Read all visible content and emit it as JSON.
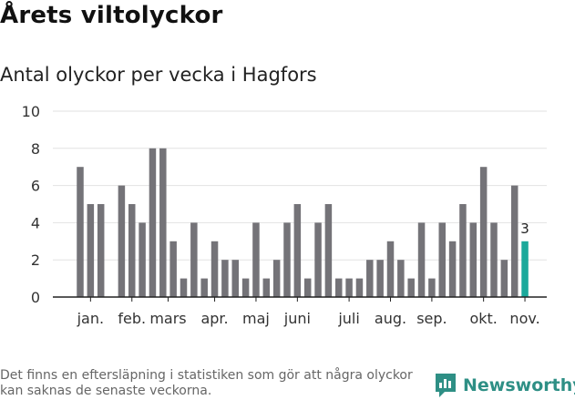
{
  "title": "Årets viltolyckor",
  "subtitle": "Antal olyckor per vecka i Hagfors",
  "footnote": "Det finns en eftersläpning i statistiken som gör att några olyckor kan saknas de senaste veckorna.",
  "brand": "Newsworthy",
  "colors": {
    "bar": "#747378",
    "highlight": "#1ba99b",
    "grid": "#e2e2e2",
    "axis": "#222222",
    "brand": "#2e8f85"
  },
  "chart_data": {
    "type": "bar",
    "ylim": [
      0,
      10
    ],
    "yticks": [
      0,
      2,
      4,
      6,
      8,
      10
    ],
    "values": [
      7,
      5,
      5,
      0,
      6,
      5,
      4,
      8,
      8,
      3,
      1,
      4,
      1,
      3,
      2,
      2,
      1,
      4,
      1,
      2,
      4,
      5,
      1,
      4,
      5,
      1,
      1,
      1,
      2,
      2,
      3,
      2,
      1,
      4,
      1,
      4,
      3,
      5,
      4,
      7,
      4,
      2,
      6,
      3
    ],
    "month_labels": [
      {
        "label": "jan.",
        "index": 1
      },
      {
        "label": "feb.",
        "index": 5
      },
      {
        "label": "mars",
        "index": 8.5
      },
      {
        "label": "apr.",
        "index": 13
      },
      {
        "label": "maj",
        "index": 17
      },
      {
        "label": "juni",
        "index": 21
      },
      {
        "label": "juli",
        "index": 26
      },
      {
        "label": "aug.",
        "index": 30
      },
      {
        "label": "sep.",
        "index": 34
      },
      {
        "label": "okt.",
        "index": 39
      },
      {
        "label": "nov.",
        "index": 43
      }
    ],
    "highlight_index": 43,
    "highlight_label": "3"
  }
}
